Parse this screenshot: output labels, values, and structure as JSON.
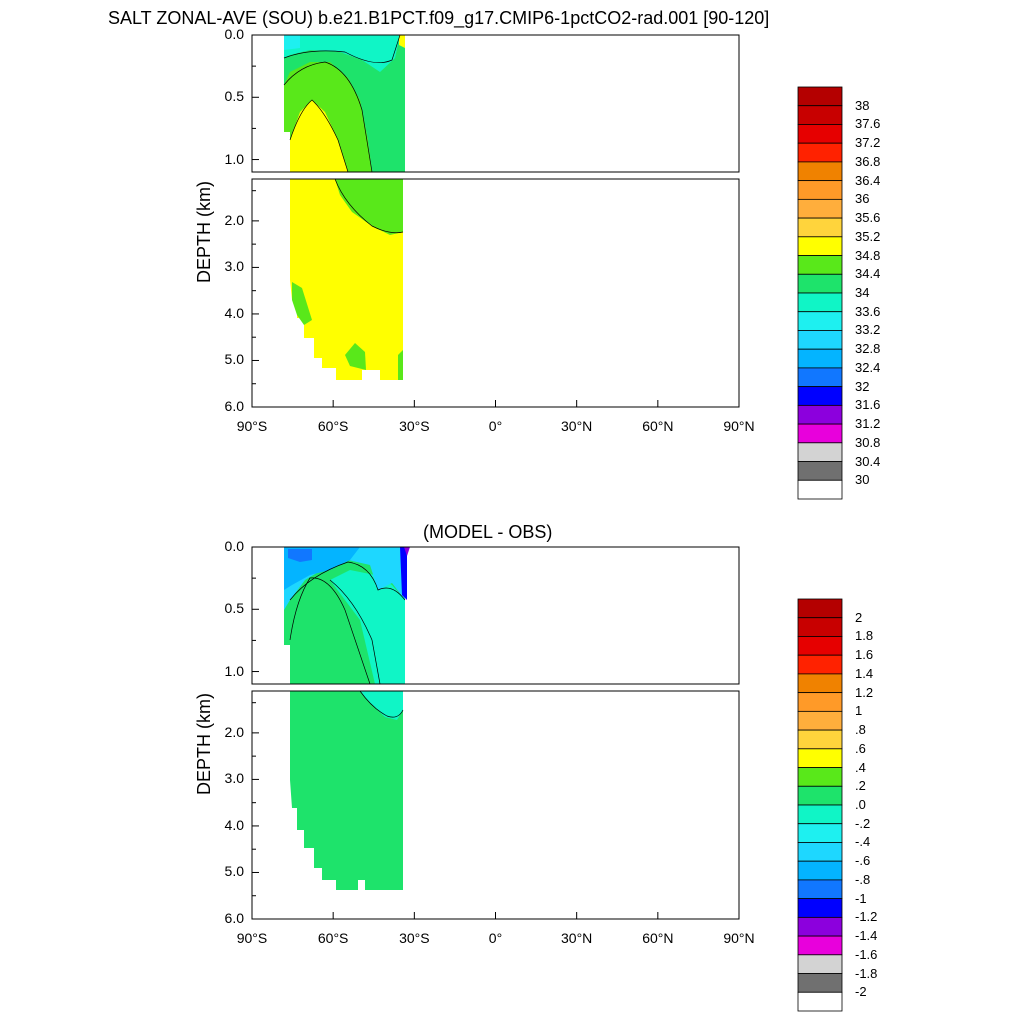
{
  "chart_data": [
    {
      "type": "contour",
      "title": "SALT ZONAL-AVE (SOU) b.e21.B1PCT.f09_g17.CMIP6-1pctCO2-rad.001 [90-120]",
      "ylabel": "DEPTH (km)",
      "xlabel": "",
      "x_ticks": [
        "90°S",
        "60°S",
        "30°S",
        "0°",
        "30°N",
        "60°N",
        "90°N"
      ],
      "x_range": [
        -90,
        90
      ],
      "y_ticks_upper": [
        "0.0",
        "0.5",
        "1.0"
      ],
      "y_ticks_lower": [
        "2.0",
        "3.0",
        "4.0",
        "5.0",
        "6.0"
      ],
      "y_range_km": [
        0,
        6
      ],
      "data_lat_range": [
        -78,
        -34
      ],
      "colorbar_labels": [
        "38",
        "37.6",
        "37.2",
        "36.8",
        "36.4",
        "36",
        "35.6",
        "35.2",
        "34.8",
        "34.4",
        "34",
        "33.6",
        "33.2",
        "32.8",
        "32.4",
        "32",
        "31.6",
        "31.2",
        "30.8",
        "30.4",
        "30"
      ]
    },
    {
      "type": "contour",
      "title": "(MODEL - OBS)",
      "ylabel": "DEPTH (km)",
      "xlabel": "",
      "x_ticks": [
        "90°S",
        "60°S",
        "30°S",
        "0°",
        "30°N",
        "60°N",
        "90°N"
      ],
      "x_range": [
        -90,
        90
      ],
      "y_ticks_upper": [
        "0.0",
        "0.5",
        "1.0"
      ],
      "y_ticks_lower": [
        "2.0",
        "3.0",
        "4.0",
        "5.0",
        "6.0"
      ],
      "y_range_km": [
        0,
        6
      ],
      "data_lat_range": [
        -78,
        -34
      ],
      "colorbar_labels": [
        "2",
        "1.8",
        "1.6",
        "1.4",
        "1.2",
        "1",
        ".8",
        ".6",
        ".4",
        ".2",
        ".0",
        "-.2",
        "-.4",
        "-.6",
        "-.8",
        "-1",
        "-1.2",
        "-1.4",
        "-1.6",
        "-1.8",
        "-2"
      ]
    }
  ],
  "colors": {
    "yellow": "#ffff00",
    "green": "#59e81a",
    "seagreen": "#1ee36b",
    "aqua": "#10f5c6",
    "cyan": "#1ef0f0",
    "sky": "#1ed7ff",
    "lightblue": "#04b4ff",
    "blue": "#1177ff",
    "darkblue": "#0000ff",
    "purple": "#8c00dd"
  }
}
